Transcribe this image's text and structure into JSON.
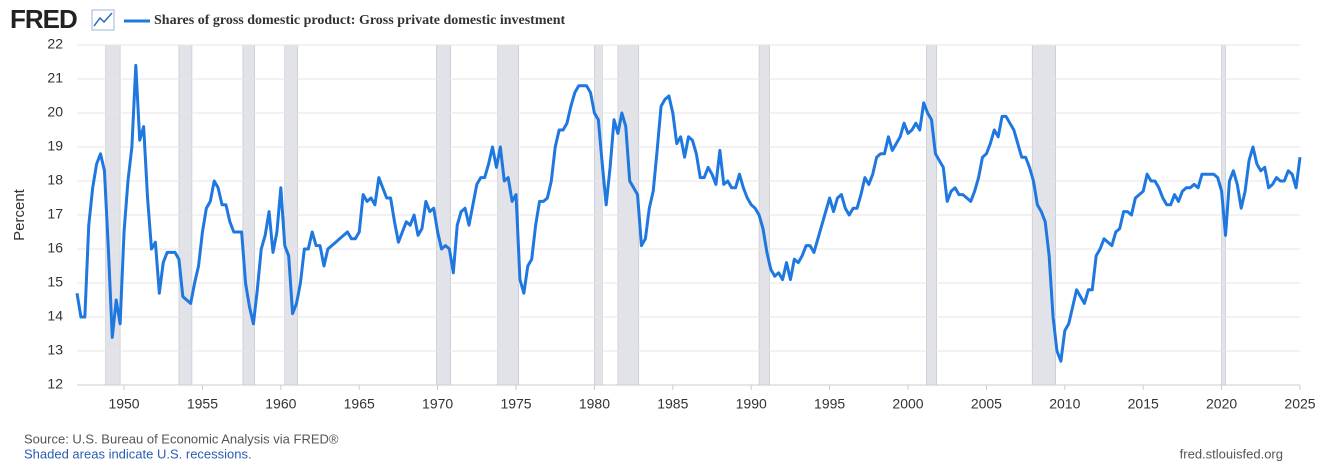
{
  "logo": "FRED",
  "chart_data": {
    "type": "line",
    "y_label": "Percent",
    "source": "Source: U.S. Bureau of Economic Analysis via FRED®",
    "note": "Shaded areas indicate U.S. recessions.",
    "site": "fred.stlouisfed.org",
    "grid": true,
    "xlim": [
      1947,
      2025
    ],
    "xticks": [
      1950,
      1955,
      1960,
      1965,
      1970,
      1975,
      1980,
      1985,
      1990,
      1995,
      2000,
      2005,
      2010,
      2015,
      2020,
      2025
    ],
    "ylim": [
      12,
      22
    ],
    "yticks": [
      12,
      13,
      14,
      15,
      16,
      17,
      18,
      19,
      20,
      21,
      22
    ],
    "recessions": [
      [
        1948.83,
        1949.75
      ],
      [
        1953.5,
        1954.33
      ],
      [
        1957.58,
        1958.33
      ],
      [
        1960.25,
        1961.08
      ],
      [
        1969.92,
        1970.83
      ],
      [
        1973.83,
        1975.17
      ],
      [
        1980.0,
        1980.5
      ],
      [
        1981.5,
        1982.83
      ],
      [
        1990.5,
        1991.17
      ],
      [
        2001.17,
        2001.83
      ],
      [
        2007.92,
        2009.42
      ],
      [
        2020.0,
        2020.25
      ]
    ],
    "x": [
      1947,
      1947.25,
      1947.5,
      1947.75,
      1948,
      1948.25,
      1948.5,
      1948.75,
      1949,
      1949.25,
      1949.5,
      1949.75,
      1950,
      1950.25,
      1950.5,
      1950.75,
      1951,
      1951.25,
      1951.5,
      1951.75,
      1952,
      1952.25,
      1952.5,
      1952.75,
      1953,
      1953.25,
      1953.5,
      1953.75,
      1954,
      1954.25,
      1954.5,
      1954.75,
      1955,
      1955.25,
      1955.5,
      1955.75,
      1956,
      1956.25,
      1956.5,
      1956.75,
      1957,
      1957.25,
      1957.5,
      1957.75,
      1958,
      1958.25,
      1958.5,
      1958.75,
      1959,
      1959.25,
      1959.5,
      1959.75,
      1960,
      1960.25,
      1960.5,
      1960.75,
      1961,
      1961.25,
      1961.5,
      1961.75,
      1962,
      1962.25,
      1962.5,
      1962.75,
      1963,
      1963.25,
      1963.5,
      1963.75,
      1964,
      1964.25,
      1964.5,
      1964.75,
      1965,
      1965.25,
      1965.5,
      1965.75,
      1966,
      1966.25,
      1966.5,
      1966.75,
      1967,
      1967.25,
      1967.5,
      1967.75,
      1968,
      1968.25,
      1968.5,
      1968.75,
      1969,
      1969.25,
      1969.5,
      1969.75,
      1970,
      1970.25,
      1970.5,
      1970.75,
      1971,
      1971.25,
      1971.5,
      1971.75,
      1972,
      1972.25,
      1972.5,
      1972.75,
      1973,
      1973.25,
      1973.5,
      1973.75,
      1974,
      1974.25,
      1974.5,
      1974.75,
      1975,
      1975.25,
      1975.5,
      1975.75,
      1976,
      1976.25,
      1976.5,
      1976.75,
      1977,
      1977.25,
      1977.5,
      1977.75,
      1978,
      1978.25,
      1978.5,
      1978.75,
      1979,
      1979.25,
      1979.5,
      1979.75,
      1980,
      1980.25,
      1980.5,
      1980.75,
      1981,
      1981.25,
      1981.5,
      1981.75,
      1982,
      1982.25,
      1982.5,
      1982.75,
      1983,
      1983.25,
      1983.5,
      1983.75,
      1984,
      1984.25,
      1984.5,
      1984.75,
      1985,
      1985.25,
      1985.5,
      1985.75,
      1986,
      1986.25,
      1986.5,
      1986.75,
      1987,
      1987.25,
      1987.5,
      1987.75,
      1988,
      1988.25,
      1988.5,
      1988.75,
      1989,
      1989.25,
      1989.5,
      1989.75,
      1990,
      1990.25,
      1990.5,
      1990.75,
      1991,
      1991.25,
      1991.5,
      1991.75,
      1992,
      1992.25,
      1992.5,
      1992.75,
      1993,
      1993.25,
      1993.5,
      1993.75,
      1994,
      1994.25,
      1994.5,
      1994.75,
      1995,
      1995.25,
      1995.5,
      1995.75,
      1996,
      1996.25,
      1996.5,
      1996.75,
      1997,
      1997.25,
      1997.5,
      1997.75,
      1998,
      1998.25,
      1998.5,
      1998.75,
      1999,
      1999.25,
      1999.5,
      1999.75,
      2000,
      2000.25,
      2000.5,
      2000.75,
      2001,
      2001.25,
      2001.5,
      2001.75,
      2002,
      2002.25,
      2002.5,
      2002.75,
      2003,
      2003.25,
      2003.5,
      2003.75,
      2004,
      2004.25,
      2004.5,
      2004.75,
      2005,
      2005.25,
      2005.5,
      2005.75,
      2006,
      2006.25,
      2006.5,
      2006.75,
      2007,
      2007.25,
      2007.5,
      2007.75,
      2008,
      2008.25,
      2008.5,
      2008.75,
      2009,
      2009.25,
      2009.5,
      2009.75,
      2010,
      2010.25,
      2010.5,
      2010.75,
      2011,
      2011.25,
      2011.5,
      2011.75,
      2012,
      2012.25,
      2012.5,
      2012.75,
      2013,
      2013.25,
      2013.5,
      2013.75,
      2014,
      2014.25,
      2014.5,
      2014.75,
      2015,
      2015.25,
      2015.5,
      2015.75,
      2016,
      2016.25,
      2016.5,
      2016.75,
      2017,
      2017.25,
      2017.5,
      2017.75,
      2018,
      2018.25,
      2018.5,
      2018.75,
      2019,
      2019.25,
      2019.5,
      2019.75,
      2020,
      2020.25,
      2020.5,
      2020.75,
      2021,
      2021.25,
      2021.5,
      2021.75,
      2022,
      2022.25,
      2022.5,
      2022.75,
      2023,
      2023.25,
      2023.5,
      2023.75,
      2024,
      2024.25,
      2024.5,
      2024.75,
      2025
    ],
    "series": [
      {
        "name": "Shares of gross domestic product: Gross private domestic investment",
        "color": "#1f77e0",
        "values": [
          14.7,
          14.0,
          14.0,
          16.7,
          17.8,
          18.5,
          18.8,
          18.3,
          16.0,
          13.4,
          14.5,
          13.8,
          16.5,
          18.0,
          19.0,
          21.4,
          19.2,
          19.6,
          17.5,
          16.0,
          16.2,
          14.7,
          15.6,
          15.9,
          15.9,
          15.9,
          15.7,
          14.6,
          14.5,
          14.4,
          15.0,
          15.5,
          16.5,
          17.2,
          17.4,
          18.0,
          17.8,
          17.3,
          17.3,
          16.8,
          16.5,
          16.5,
          16.5,
          15.0,
          14.3,
          13.8,
          14.8,
          16.0,
          16.4,
          17.1,
          15.9,
          16.5,
          17.8,
          16.1,
          15.8,
          14.1,
          14.4,
          15.0,
          16.0,
          16.0,
          16.5,
          16.1,
          16.1,
          15.5,
          16.0,
          16.1,
          16.2,
          16.3,
          16.4,
          16.5,
          16.3,
          16.3,
          16.5,
          17.6,
          17.4,
          17.5,
          17.3,
          18.1,
          17.8,
          17.5,
          17.5,
          16.8,
          16.2,
          16.5,
          16.8,
          16.7,
          17.0,
          16.4,
          16.6,
          17.4,
          17.1,
          17.2,
          16.5,
          16.0,
          16.1,
          16.0,
          15.3,
          16.7,
          17.1,
          17.2,
          16.7,
          17.3,
          17.9,
          18.1,
          18.1,
          18.5,
          19.0,
          18.4,
          19.0,
          18.0,
          18.1,
          17.4,
          17.6,
          15.1,
          14.7,
          15.5,
          15.7,
          16.7,
          17.4,
          17.4,
          17.5,
          18.0,
          19.0,
          19.5,
          19.5,
          19.7,
          20.2,
          20.6,
          20.8,
          20.8,
          20.8,
          20.6,
          20.0,
          19.8,
          18.5,
          17.3,
          18.4,
          19.8,
          19.4,
          20.0,
          19.6,
          18.0,
          17.8,
          17.6,
          16.1,
          16.3,
          17.2,
          17.7,
          18.9,
          20.2,
          20.4,
          20.5,
          20.0,
          19.1,
          19.3,
          18.7,
          19.3,
          19.2,
          18.8,
          18.1,
          18.1,
          18.4,
          18.2,
          17.9,
          18.9,
          17.9,
          18.0,
          17.8,
          17.8,
          18.2,
          17.8,
          17.5,
          17.3,
          17.2,
          17.0,
          16.6,
          15.9,
          15.4,
          15.2,
          15.3,
          15.1,
          15.6,
          15.1,
          15.7,
          15.6,
          15.8,
          16.1,
          16.1,
          15.9,
          16.3,
          16.7,
          17.1,
          17.5,
          17.1,
          17.5,
          17.6,
          17.2,
          17.0,
          17.2,
          17.2,
          17.6,
          18.1,
          17.9,
          18.2,
          18.7,
          18.8,
          18.8,
          19.3,
          18.9,
          19.1,
          19.3,
          19.7,
          19.4,
          19.5,
          19.7,
          19.5,
          20.3,
          20.0,
          19.8,
          18.8,
          18.6,
          18.4,
          17.4,
          17.7,
          17.8,
          17.6,
          17.6,
          17.5,
          17.4,
          17.7,
          18.1,
          18.7,
          18.8,
          19.1,
          19.5,
          19.3,
          19.9,
          19.9,
          19.7,
          19.5,
          19.1,
          18.7,
          18.7,
          18.4,
          18.0,
          17.3,
          17.1,
          16.8,
          15.8,
          14.0,
          13.0,
          12.7,
          13.6,
          13.8,
          14.3,
          14.8,
          14.6,
          14.4,
          14.8,
          14.8,
          15.8,
          16.0,
          16.3,
          16.2,
          16.1,
          16.5,
          16.6,
          17.1,
          17.1,
          17.0,
          17.5,
          17.6,
          17.7,
          18.2,
          18.0,
          18.0,
          17.8,
          17.5,
          17.3,
          17.3,
          17.6,
          17.4,
          17.7,
          17.8,
          17.8,
          17.9,
          17.8,
          18.2,
          18.2,
          18.2,
          18.2,
          18.1,
          17.7,
          16.4,
          18.0,
          18.3,
          17.9,
          17.2,
          17.7,
          18.6,
          19.0,
          18.5,
          18.3,
          18.4,
          17.8,
          17.9,
          18.1,
          18.0,
          18.0,
          18.3,
          18.2,
          17.8,
          18.7
        ]
      }
    ]
  }
}
